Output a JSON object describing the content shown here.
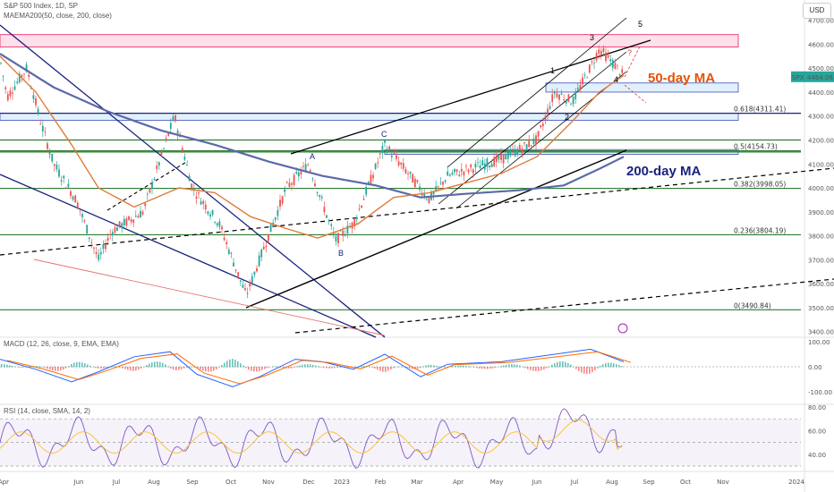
{
  "header": {
    "symbol_line": "S&P 500 Index, 1D, SP",
    "ma_line": "MAEMA200(50, close, 200, close)",
    "macd_line": "MACD (12, 26, close, 9, EMA, EMA)",
    "rsi_line": "RSI (14, close, SMA, 14, 2)",
    "currency_button": "USD"
  },
  "price_scale": {
    "ticks": [
      "4700.00",
      "4600.00",
      "4500.00",
      "4400.00",
      "4300.00",
      "4200.00",
      "4100.00",
      "4000.00",
      "3900.00",
      "3800.00",
      "3700.00",
      "3600.00",
      "3500.00",
      "3400.00"
    ],
    "last_price_tag": "SPX",
    "last_price": "4464.06"
  },
  "macd_scale": {
    "ticks": [
      "100.00",
      "0.00",
      "-100.00"
    ]
  },
  "rsi_scale": {
    "ticks": [
      "80.00",
      "60.00",
      "40.00"
    ]
  },
  "time_axis": {
    "labels": [
      "Apr",
      "Jun",
      "Jul",
      "Aug",
      "Sep",
      "Oct",
      "Nov",
      "Dec",
      "2023",
      "Feb",
      "Mar",
      "Apr",
      "May",
      "Jun",
      "Jul",
      "Aug",
      "Sep",
      "Oct",
      "Nov",
      "2024"
    ]
  },
  "annotations": {
    "ma50_label": "50-day MA",
    "ma200_label": "200-day MA",
    "wave_1": "1",
    "wave_2": "2",
    "wave_3": "3",
    "wave_4": "4",
    "wave_5": "5",
    "wave_a": "A",
    "wave_b": "B",
    "wave_c": "C",
    "question_mark": "?"
  },
  "fib_levels": [
    {
      "label": "0.618(4311.41)",
      "price": 4311.41
    },
    {
      "label": "0.5(4154.73)",
      "price": 4154.73
    },
    {
      "label": "0.382(3998.05)",
      "price": 3998.05
    },
    {
      "label": "0.236(3804.19)",
      "price": 3804.19
    },
    {
      "label": "0(3490.84)",
      "price": 3490.84
    }
  ],
  "colors": {
    "up": "#26a69a",
    "down": "#ef5350",
    "ma50": "#e07b39",
    "ma200": "#5b6aa8",
    "trendline": "#1a237e",
    "fib_line": "#2e7d32",
    "zone_pink": "#f8bbd0",
    "zone_blue": "#bbdefb",
    "ma50_text": "#e65100",
    "ma200_text": "#1a237e"
  },
  "chart_data": [
    {
      "type": "candlestick",
      "title": "S&P 500 Index, 1D",
      "ylim": [
        3380,
        4720
      ],
      "series": [
        {
          "name": "SPX",
          "x": [
            "2022-04",
            "2022-06",
            "2022-08",
            "2022-10",
            "2022-12",
            "2023-02",
            "2023-04",
            "2023-06",
            "2023-07",
            "2023-08"
          ],
          "values": [
            4500,
            3700,
            4300,
            3500,
            3800,
            4180,
            4100,
            4400,
            4600,
            4464.06
          ]
        },
        {
          "name": "50-day MA",
          "values": [
            4450,
            4050,
            3950,
            3800,
            3850,
            3950,
            4000,
            4150,
            4400,
            4470
          ]
        },
        {
          "name": "200-day MA",
          "values": [
            4450,
            4300,
            4200,
            4050,
            3950,
            3950,
            3990,
            4000,
            4100,
            4200
          ]
        }
      ]
    },
    {
      "type": "line",
      "title": "MACD (12, 26, close, 9, EMA, EMA)",
      "ylim": [
        -120,
        120
      ]
    },
    {
      "type": "line",
      "title": "RSI (14, close, SMA, 14, 2)",
      "ylim": [
        30,
        80
      ]
    }
  ]
}
